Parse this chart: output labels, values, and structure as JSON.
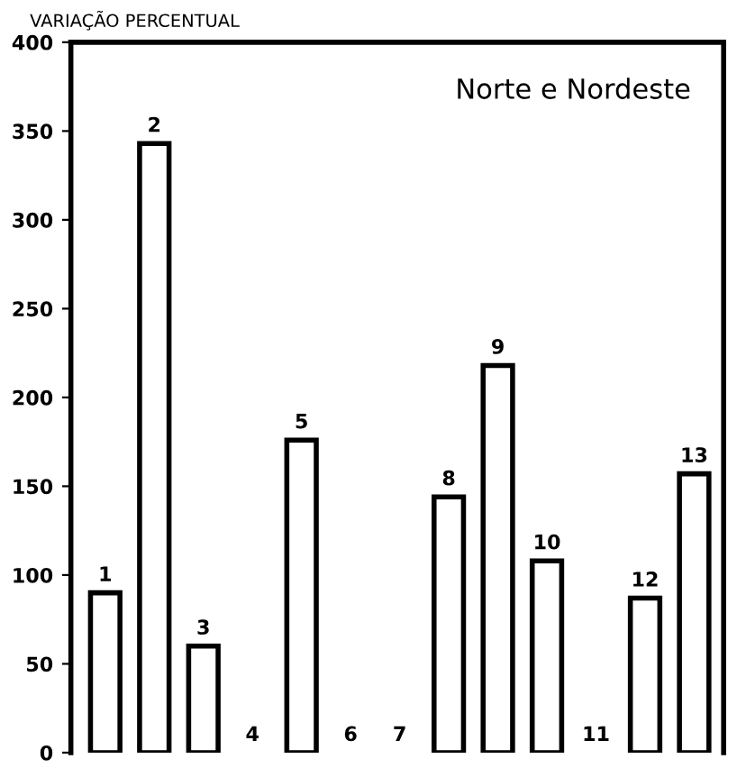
{
  "chart_data": {
    "type": "bar",
    "ylabel": "VARIAÇÃO PERCENTUAL",
    "annotations": [
      "Norte e Nordeste"
    ],
    "categories": [
      "1",
      "2",
      "3",
      "4",
      "5",
      "6",
      "7",
      "8",
      "9",
      "10",
      "11",
      "12",
      "13"
    ],
    "values": [
      90,
      343,
      60,
      0,
      176,
      0,
      0,
      144,
      218,
      108,
      0,
      87,
      157
    ],
    "color": "#ffffff",
    "ylim": [
      0,
      400
    ],
    "yticks": [
      0,
      50,
      100,
      150,
      200,
      250,
      300,
      350,
      400
    ],
    "grid": false,
    "legend": false
  }
}
